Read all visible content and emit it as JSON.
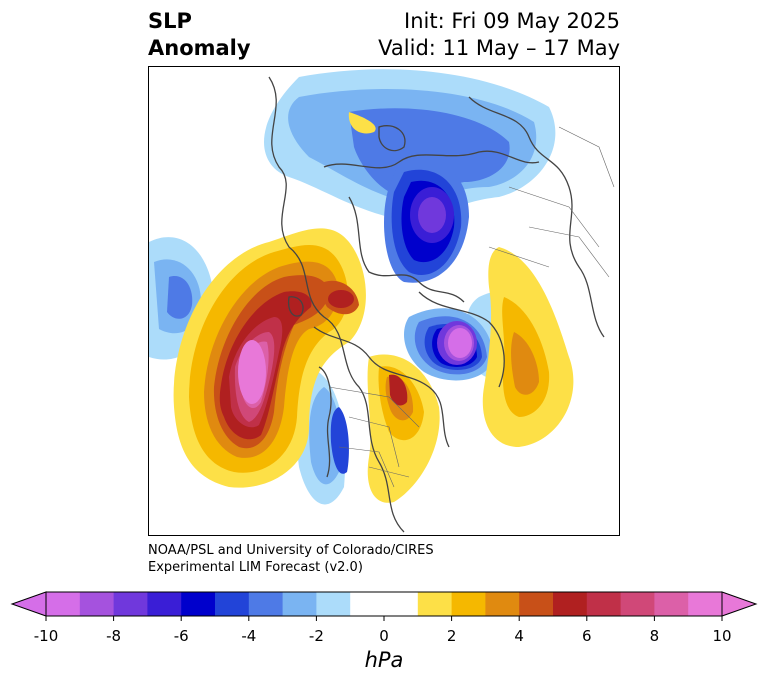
{
  "title": {
    "left_line1": "SLP",
    "left_line2": "Anomaly",
    "right_line1": "Init: Fri 09 May 2025",
    "right_line2": "Valid: 11 May – 17 May"
  },
  "credit": {
    "line1": "NOAA/PSL and University of Colorado/CIRES",
    "line2": "Experimental LIM Forecast (v2.0)"
  },
  "colorbar": {
    "unit": "hPa",
    "ticks": [
      "-10",
      "-8",
      "-6",
      "-4",
      "-2",
      "0",
      "2",
      "4",
      "6",
      "8",
      "10"
    ],
    "colors": [
      "#d56ee8",
      "#a552de",
      "#7038dc",
      "#3a1ed6",
      "#0000cc",
      "#2244d8",
      "#4e7ae6",
      "#7ab4f2",
      "#acdcfa",
      "#ffffff",
      "#ffffff",
      "#fde047",
      "#f5b800",
      "#e08a10",
      "#c85018",
      "#b02020",
      "#c03048",
      "#d04878",
      "#dc60a8",
      "#e878d8"
    ]
  },
  "map": {
    "projection": "north-polar-stereographic",
    "field": "SLP anomaly"
  }
}
